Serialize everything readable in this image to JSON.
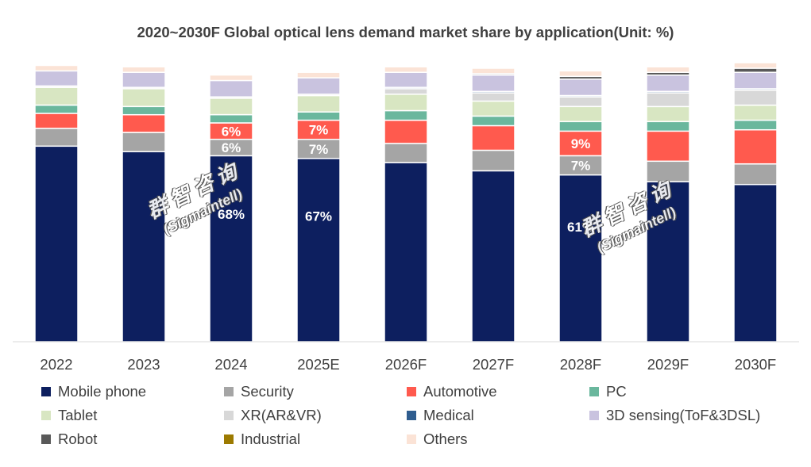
{
  "chart_data": {
    "type": "bar",
    "stacked": true,
    "title": "2020~2030F Global optical lens demand market share by application(Unit: %)",
    "xlabel": "",
    "ylabel": "",
    "ylim": [
      0,
      100
    ],
    "categories": [
      "2022",
      "2023",
      "2024",
      "2025E",
      "2026F",
      "2027F",
      "2028F",
      "2029F",
      "2030F"
    ],
    "series": [
      {
        "name": "Mobile phone",
        "color": "#0d1f5f",
        "values": [
          71.5,
          69.5,
          68,
          67,
          65.5,
          62.5,
          61,
          58.5,
          57.5
        ],
        "labels": [
          "",
          "",
          "68%",
          "67%",
          "",
          "",
          "61%",
          "",
          ""
        ]
      },
      {
        "name": "Security",
        "color": "#a5a5a5",
        "values": [
          6.5,
          7,
          6,
          7,
          7,
          7.5,
          7,
          7.5,
          7.5
        ],
        "labels": [
          "",
          "",
          "6%",
          "7%",
          "",
          "",
          "7%",
          "",
          ""
        ]
      },
      {
        "name": "Automotive",
        "color": "#ff5a4e",
        "values": [
          5.5,
          6.5,
          6,
          7,
          8.5,
          9,
          9,
          11,
          12.5
        ],
        "labels": [
          "",
          "",
          "6%",
          "7%",
          "",
          "",
          "9%",
          "",
          ""
        ]
      },
      {
        "name": "PC",
        "color": "#6ab79d",
        "values": [
          3,
          3,
          3,
          3,
          3.5,
          3.5,
          3.5,
          3.5,
          3.5
        ]
      },
      {
        "name": "Tablet",
        "color": "#d8e6c2",
        "values": [
          6.5,
          6.5,
          6,
          6,
          6,
          5.5,
          5.5,
          5.5,
          5.5
        ]
      },
      {
        "name": "XR(AR&VR)",
        "color": "#d8d8d8",
        "values": [
          0.5,
          0.5,
          0.5,
          0.5,
          2,
          3,
          3.5,
          5,
          5.5
        ]
      },
      {
        "name": "Medical",
        "color": "#2f5d8f",
        "values": [
          0,
          0,
          0,
          0,
          0.5,
          0.5,
          0.5,
          0.5,
          0.5
        ]
      },
      {
        "name": "3D sensing(ToF&3DSL)",
        "color": "#c9c3df",
        "values": [
          5.5,
          5.5,
          6,
          6,
          5.5,
          6,
          6,
          6,
          6
        ]
      },
      {
        "name": "Robot",
        "color": "#595959",
        "values": [
          0,
          0,
          0,
          0,
          0,
          0.5,
          1,
          1,
          1.5
        ]
      },
      {
        "name": "Industrial",
        "color": "#9c7a00",
        "values": [
          0,
          0,
          0,
          0,
          0,
          0,
          0,
          0,
          0
        ]
      },
      {
        "name": "Others",
        "color": "#fbe3d6",
        "values": [
          2,
          2,
          2,
          2,
          2,
          2,
          2,
          2,
          2
        ]
      }
    ],
    "watermark": {
      "zh": "群智咨询",
      "en": "(Sigmaintell)"
    }
  }
}
